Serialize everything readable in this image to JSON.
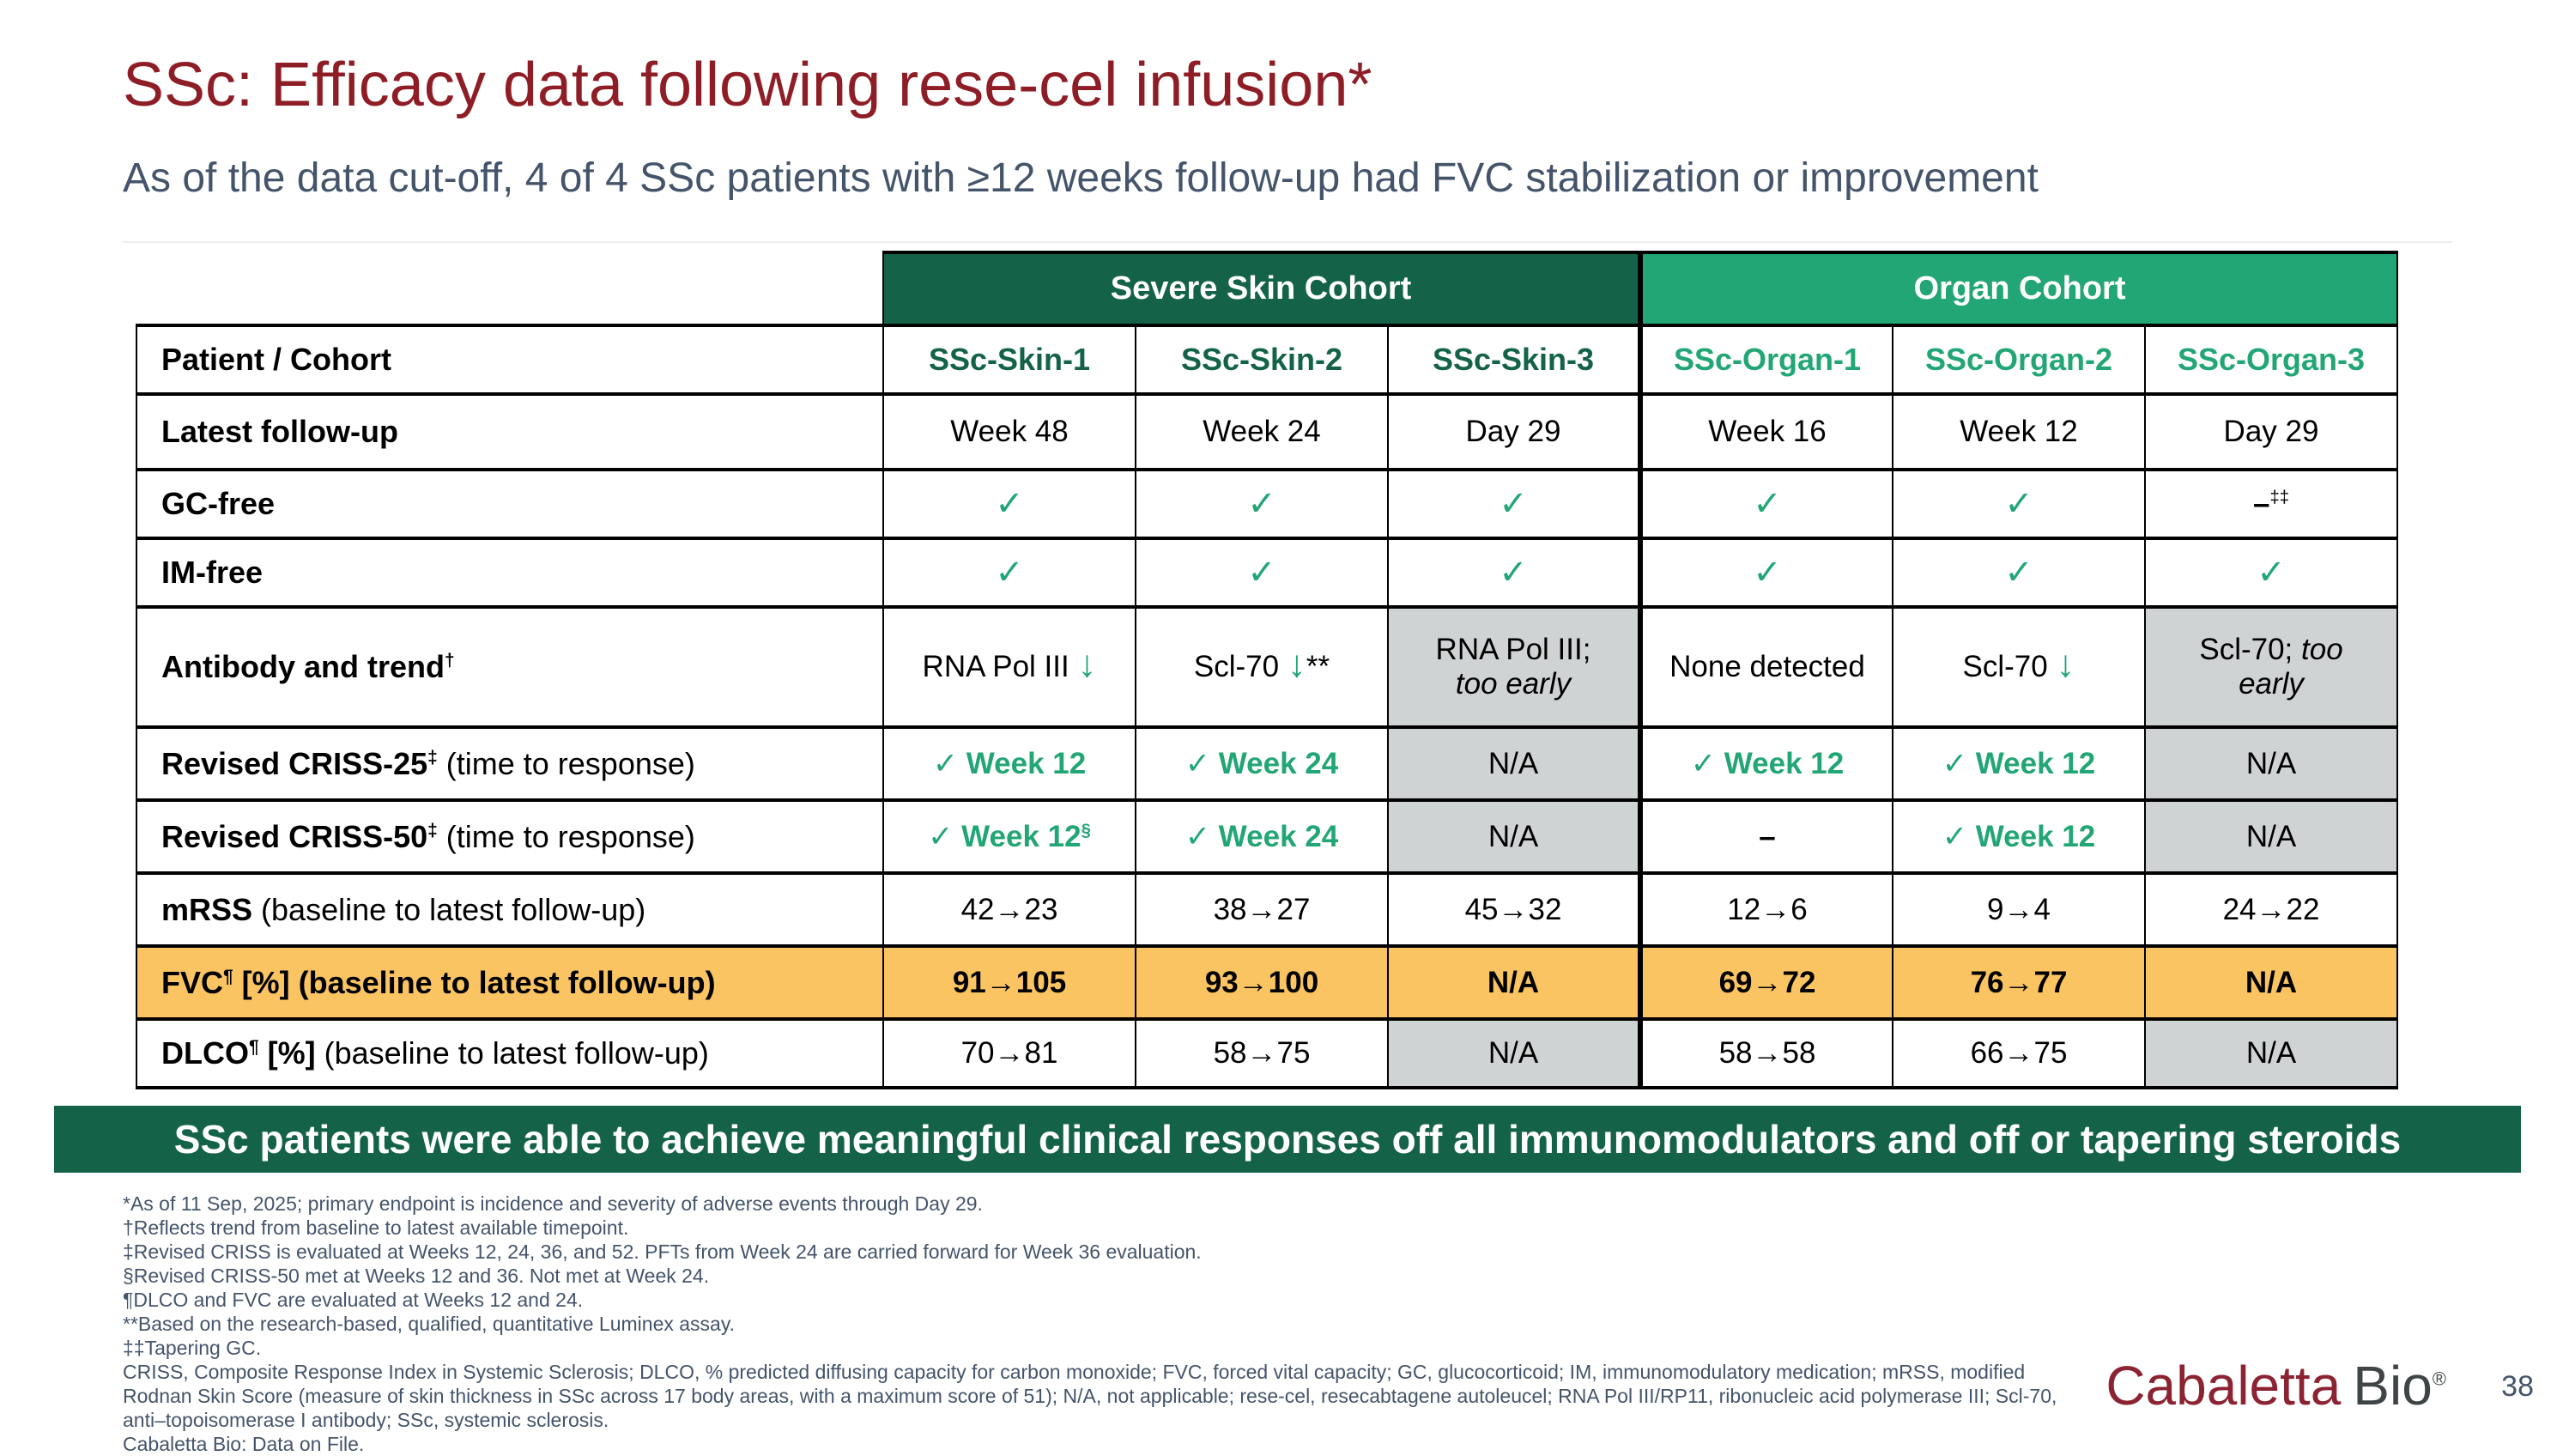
{
  "slide": {
    "title": "SSc: Efficacy data following rese-cel infusion*",
    "subtitle": "As of the data cut-off, 4 of 4 SSc patients with ≥12 weeks follow-up had FVC stabilization or improvement",
    "banner": "SSc patients were able to achieve meaningful clinical responses off all immunomodulators and off or tapering steroids",
    "page_number": "38",
    "logo": {
      "part1": "Cabaletta",
      "part2": "Bio",
      "registered": "®"
    }
  },
  "colors": {
    "dark_green": "#146349",
    "light_green": "#22a676",
    "orange": "#fbc463",
    "gray_cell": "#d0d3d4",
    "title_red": "#8e1d26",
    "slate": "#44546a",
    "logo_red": "#8b2332",
    "logo_gray": "#3f4447"
  },
  "table": {
    "cohort_headers": [
      {
        "label": "Severe Skin Cohort",
        "span": 3,
        "color_key": "dark_green"
      },
      {
        "label": "Organ Cohort",
        "span": 3,
        "color_key": "light_green"
      }
    ],
    "rows": [
      {
        "name": "patient-cohort",
        "label_parts": [
          {
            "t": "Patient / Cohort",
            "s": "b"
          }
        ],
        "cells": [
          {
            "parts": [
              {
                "t": "SSc-Skin-1",
                "s": "skin"
              }
            ]
          },
          {
            "parts": [
              {
                "t": "SSc-Skin-2",
                "s": "skin"
              }
            ]
          },
          {
            "parts": [
              {
                "t": "SSc-Skin-3",
                "s": "skin"
              }
            ]
          },
          {
            "parts": [
              {
                "t": "SSc-Organ-1",
                "s": "organ"
              }
            ]
          },
          {
            "parts": [
              {
                "t": "SSc-Organ-2",
                "s": "organ"
              }
            ]
          },
          {
            "parts": [
              {
                "t": "SSc-Organ-3",
                "s": "organ"
              }
            ]
          }
        ]
      },
      {
        "name": "latest-follow-up",
        "label_parts": [
          {
            "t": "Latest follow-up",
            "s": "b"
          }
        ],
        "cells": [
          {
            "parts": [
              {
                "t": "Week 48"
              }
            ]
          },
          {
            "parts": [
              {
                "t": "Week 24"
              }
            ]
          },
          {
            "parts": [
              {
                "t": "Day 29"
              }
            ]
          },
          {
            "parts": [
              {
                "t": "Week 16"
              }
            ]
          },
          {
            "parts": [
              {
                "t": "Week 12"
              }
            ]
          },
          {
            "parts": [
              {
                "t": "Day 29"
              }
            ]
          }
        ]
      },
      {
        "name": "gc-free",
        "label_parts": [
          {
            "t": "GC-free",
            "s": "b"
          }
        ],
        "cells": [
          {
            "parts": [
              {
                "t": "✓",
                "s": "check"
              }
            ]
          },
          {
            "parts": [
              {
                "t": "✓",
                "s": "check"
              }
            ]
          },
          {
            "parts": [
              {
                "t": "✓",
                "s": "check"
              }
            ]
          },
          {
            "parts": [
              {
                "t": "✓",
                "s": "check"
              }
            ]
          },
          {
            "parts": [
              {
                "t": "✓",
                "s": "check"
              }
            ]
          },
          {
            "parts": [
              {
                "t": "–",
                "s": "b"
              },
              {
                "t": "‡‡",
                "s": "sup"
              }
            ]
          }
        ]
      },
      {
        "name": "im-free",
        "label_parts": [
          {
            "t": "IM-free",
            "s": "b"
          }
        ],
        "cells": [
          {
            "parts": [
              {
                "t": "✓",
                "s": "check"
              }
            ]
          },
          {
            "parts": [
              {
                "t": "✓",
                "s": "check"
              }
            ]
          },
          {
            "parts": [
              {
                "t": "✓",
                "s": "check"
              }
            ]
          },
          {
            "parts": [
              {
                "t": "✓",
                "s": "check"
              }
            ]
          },
          {
            "parts": [
              {
                "t": "✓",
                "s": "check"
              }
            ]
          },
          {
            "parts": [
              {
                "t": "✓",
                "s": "check"
              }
            ]
          }
        ]
      },
      {
        "name": "antibody-trend",
        "label_parts": [
          {
            "t": "Antibody and trend",
            "s": "b"
          },
          {
            "t": "†",
            "s": "bsup"
          }
        ],
        "cells": [
          {
            "parts": [
              {
                "t": "RNA Pol III "
              },
              {
                "t": "↓",
                "s": "arrow"
              }
            ]
          },
          {
            "parts": [
              {
                "t": "Scl-70 "
              },
              {
                "t": "↓",
                "s": "arrow"
              },
              {
                "t": "**"
              }
            ]
          },
          {
            "bg": "gray",
            "parts": [
              {
                "t": "RNA Pol III;"
              },
              {
                "s": "br"
              },
              {
                "t": "too early",
                "s": "i"
              }
            ]
          },
          {
            "parts": [
              {
                "t": "None detected"
              }
            ]
          },
          {
            "parts": [
              {
                "t": "Scl-70 "
              },
              {
                "t": "↓",
                "s": "arrow"
              }
            ]
          },
          {
            "bg": "gray",
            "parts": [
              {
                "t": "Scl-70; "
              },
              {
                "t": "too early",
                "s": "i"
              }
            ]
          }
        ]
      },
      {
        "name": "criss-25",
        "label_parts": [
          {
            "t": "Revised CRISS-25",
            "s": "b"
          },
          {
            "t": "‡",
            "s": "bsup"
          },
          {
            "t": " (time to response)"
          }
        ],
        "cells": [
          {
            "parts": [
              {
                "t": "✓ Week 12",
                "s": "gb"
              }
            ]
          },
          {
            "parts": [
              {
                "t": "✓ Week 24",
                "s": "gb"
              }
            ]
          },
          {
            "bg": "gray",
            "parts": [
              {
                "t": "N/A"
              }
            ]
          },
          {
            "parts": [
              {
                "t": "✓ Week 12",
                "s": "gb"
              }
            ]
          },
          {
            "parts": [
              {
                "t": "✓ Week 12",
                "s": "gb"
              }
            ]
          },
          {
            "bg": "gray",
            "parts": [
              {
                "t": "N/A"
              }
            ]
          }
        ]
      },
      {
        "name": "criss-50",
        "label_parts": [
          {
            "t": "Revised CRISS-50",
            "s": "b"
          },
          {
            "t": "‡",
            "s": "bsup"
          },
          {
            "t": " (time to response)"
          }
        ],
        "cells": [
          {
            "parts": [
              {
                "t": "✓ Week 12",
                "s": "gb"
              },
              {
                "t": "§",
                "s": "gsup"
              }
            ]
          },
          {
            "parts": [
              {
                "t": "✓ Week 24",
                "s": "gb"
              }
            ]
          },
          {
            "bg": "gray",
            "parts": [
              {
                "t": "N/A"
              }
            ]
          },
          {
            "parts": [
              {
                "t": "–",
                "s": "b"
              }
            ]
          },
          {
            "parts": [
              {
                "t": "✓ Week 12",
                "s": "gb"
              }
            ]
          },
          {
            "bg": "gray",
            "parts": [
              {
                "t": "N/A"
              }
            ]
          }
        ]
      },
      {
        "name": "mrss",
        "label_parts": [
          {
            "t": "mRSS",
            "s": "b"
          },
          {
            "t": " (baseline to latest follow-up)"
          }
        ],
        "cells": [
          {
            "parts": [
              {
                "t": "42→23"
              }
            ]
          },
          {
            "parts": [
              {
                "t": "38→27"
              }
            ]
          },
          {
            "parts": [
              {
                "t": "45→32"
              }
            ]
          },
          {
            "parts": [
              {
                "t": "12→6"
              }
            ]
          },
          {
            "parts": [
              {
                "t": "9→4"
              }
            ]
          },
          {
            "parts": [
              {
                "t": "24→22"
              }
            ]
          }
        ]
      },
      {
        "name": "fvc",
        "bg": "orange",
        "label_parts": [
          {
            "t": "FVC",
            "s": "b"
          },
          {
            "t": "¶",
            "s": "bsup"
          },
          {
            "t": " [%]  (baseline to latest follow-up)",
            "s": "b"
          }
        ],
        "cells": [
          {
            "parts": [
              {
                "t": "91→105",
                "s": "b"
              }
            ]
          },
          {
            "parts": [
              {
                "t": "93→100",
                "s": "b"
              }
            ]
          },
          {
            "parts": [
              {
                "t": "N/A",
                "s": "b"
              }
            ]
          },
          {
            "parts": [
              {
                "t": "69→72",
                "s": "b"
              }
            ]
          },
          {
            "parts": [
              {
                "t": "76→77",
                "s": "b"
              }
            ]
          },
          {
            "parts": [
              {
                "t": "N/A",
                "s": "b"
              }
            ]
          }
        ]
      },
      {
        "name": "dlco",
        "label_parts": [
          {
            "t": "DLCO",
            "s": "b"
          },
          {
            "t": "¶",
            "s": "bsup"
          },
          {
            "t": " [%]",
            "s": "b"
          },
          {
            "t": " (baseline to latest follow-up)"
          }
        ],
        "cells": [
          {
            "parts": [
              {
                "t": "70→81"
              }
            ]
          },
          {
            "parts": [
              {
                "t": "58→75"
              }
            ]
          },
          {
            "bg": "gray",
            "parts": [
              {
                "t": "N/A"
              }
            ]
          },
          {
            "parts": [
              {
                "t": "58→58"
              }
            ]
          },
          {
            "parts": [
              {
                "t": "66→75"
              }
            ]
          },
          {
            "bg": "gray",
            "parts": [
              {
                "t": "N/A"
              }
            ]
          }
        ]
      }
    ]
  },
  "footnotes": [
    "*As of 11 Sep, 2025; primary endpoint is incidence and severity of adverse events through Day 29.",
    "†Reflects trend from baseline to latest available timepoint.",
    "‡Revised CRISS is evaluated at Weeks 12, 24, 36, and 52. PFTs from Week 24 are carried forward for Week 36 evaluation.",
    "§Revised CRISS-50 met at Weeks 12 and 36. Not met at Week 24.",
    "¶DLCO and FVC are evaluated at Weeks 12 and 24.",
    "**Based on the research-based, qualified, quantitative Luminex assay.",
    "‡‡Tapering GC.",
    "CRISS, Composite Response Index in Systemic Sclerosis; DLCO, % predicted diffusing capacity for carbon monoxide; FVC, forced vital capacity; GC, glucocorticoid; IM, immunomodulatory medication; mRSS, modified",
    "Rodnan Skin Score (measure of skin thickness in SSc across 17 body areas, with a maximum score of 51); N/A, not applicable; rese-cel, resecabtagene autoleucel; RNA Pol III/RP11, ribonucleic acid polymerase III; Scl-70,",
    "anti–topoisomerase I antibody; SSc, systemic sclerosis.",
    "Cabaletta Bio: Data on File."
  ]
}
